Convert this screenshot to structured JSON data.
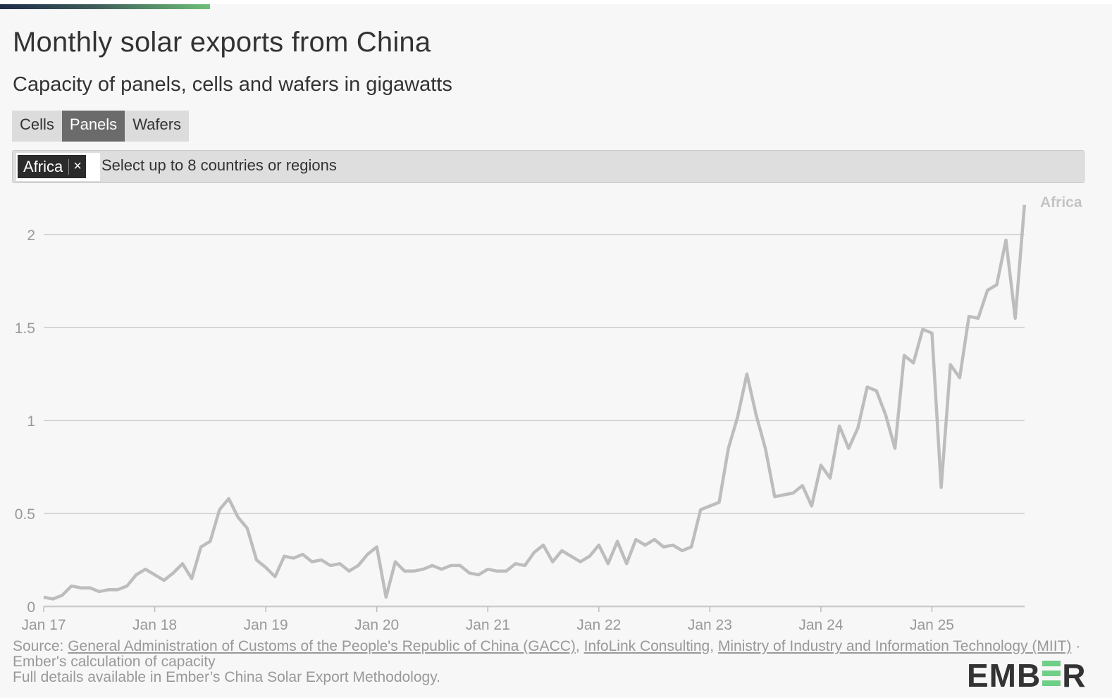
{
  "header": {
    "title": "Monthly solar exports from China",
    "subtitle": "Capacity of panels, cells and wafers in gigawatts"
  },
  "tabs": [
    {
      "label": "Cells",
      "active": false
    },
    {
      "label": "Panels",
      "active": true
    },
    {
      "label": "Wafers",
      "active": false
    }
  ],
  "selector": {
    "selected": [
      {
        "label": "Africa",
        "remove_icon": "×"
      }
    ],
    "placeholder": "Select up to 8 countries or regions"
  },
  "footer": {
    "source_prefix": "Source: ",
    "links": [
      "General Administration of Customs of the People's Republic of China (GACC)",
      "InfoLink Consulting",
      "Ministry of Industry and Information Technology (MIIT)"
    ],
    "sep1": ", ",
    "sep2": ", ",
    "suffix": " · Ember's calculation of capacity",
    "line3": "Full details available in Ember’s China Solar Export Methodology."
  },
  "logo": {
    "text_left": "EMB",
    "text_right": "R"
  },
  "colors": {
    "line": "#bdbdbd",
    "grid": "#cccccc",
    "axis_text": "#999999",
    "accent_green": "#6fcf86"
  },
  "chart_data": {
    "type": "line",
    "title": "Monthly solar exports from China",
    "subtitle": "Capacity of panels, cells and wafers in gigawatts",
    "xlabel": "",
    "ylabel": "GW",
    "ylim": [
      0,
      2.2
    ],
    "yticks": [
      0,
      0.5,
      1,
      1.5,
      2
    ],
    "ytick_labels": [
      "0",
      "0.5",
      "1",
      "1.5",
      "2"
    ],
    "xtick_labels": [
      "Jan 17",
      "Jan 18",
      "Jan 19",
      "Jan 20",
      "Jan 21",
      "Jan 22",
      "Jan 23",
      "Jan 24",
      "Jan 25"
    ],
    "grid": true,
    "legend": "inline label at line end",
    "start": "2017-01",
    "series": [
      {
        "name": "Africa",
        "values": [
          0.05,
          0.04,
          0.06,
          0.11,
          0.1,
          0.1,
          0.08,
          0.09,
          0.09,
          0.11,
          0.17,
          0.2,
          0.17,
          0.14,
          0.18,
          0.23,
          0.15,
          0.32,
          0.35,
          0.52,
          0.58,
          0.48,
          0.42,
          0.25,
          0.21,
          0.16,
          0.27,
          0.26,
          0.28,
          0.24,
          0.25,
          0.22,
          0.23,
          0.19,
          0.22,
          0.28,
          0.32,
          0.05,
          0.24,
          0.19,
          0.19,
          0.2,
          0.22,
          0.2,
          0.22,
          0.22,
          0.18,
          0.17,
          0.2,
          0.19,
          0.19,
          0.23,
          0.22,
          0.29,
          0.33,
          0.24,
          0.3,
          0.27,
          0.24,
          0.27,
          0.33,
          0.23,
          0.35,
          0.23,
          0.36,
          0.33,
          0.36,
          0.32,
          0.33,
          0.3,
          0.32,
          0.52,
          0.54,
          0.56,
          0.85,
          1.02,
          1.25,
          1.03,
          0.85,
          0.59,
          0.6,
          0.61,
          0.65,
          0.54,
          0.76,
          0.69,
          0.97,
          0.85,
          0.96,
          1.18,
          1.16,
          1.03,
          0.85,
          1.35,
          1.31,
          1.49,
          1.47,
          0.64,
          1.3,
          1.23,
          1.56,
          1.55,
          1.7,
          1.73,
          1.97,
          1.55,
          2.16
        ]
      }
    ]
  }
}
